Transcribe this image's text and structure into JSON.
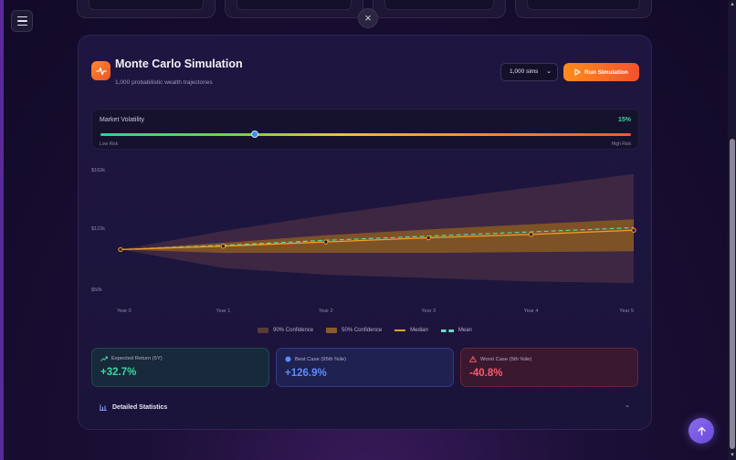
{
  "header": {
    "close_symbol": "×"
  },
  "simulation": {
    "title": "Monte Carlo Simulation",
    "subtitle": "1,000 probabilistic wealth trajectories",
    "sims_select": {
      "selected": "1,000 sims"
    },
    "run_label": "Run Simulation"
  },
  "volatility": {
    "label": "Market Volatility",
    "value_text": "15%",
    "low_label": "Low Risk",
    "high_label": "High Risk",
    "level_fraction": 0.29
  },
  "chart_data": {
    "type": "area",
    "x": [
      "Year 0",
      "Year 1",
      "Year 2",
      "Year 3",
      "Year 4",
      "Year 5"
    ],
    "y_ticks": [
      "$163k",
      "$122k",
      "$50k"
    ],
    "series": [
      {
        "name": "90% Confidence",
        "upper": [
          100,
          122,
          141,
          158,
          174,
          190
        ],
        "lower": [
          100,
          78,
          70,
          66,
          62,
          60
        ]
      },
      {
        "name": "50% Confidence",
        "upper": [
          100,
          108,
          117,
          124,
          130,
          136
        ],
        "lower": [
          100,
          96,
          96,
          96,
          97,
          98
        ]
      },
      {
        "name": "Median",
        "values": [
          100,
          104,
          109,
          114,
          118,
          123
        ]
      },
      {
        "name": "Mean",
        "values": [
          100,
          105,
          111,
          116,
          121,
          126
        ]
      }
    ],
    "colors": {
      "band90": "#4a2d45",
      "band50": "#8a5a22",
      "median": "#f0a020",
      "mean": "#4fd8b4"
    }
  },
  "legend": [
    {
      "label": "90% Confidence"
    },
    {
      "label": "50% Confidence"
    },
    {
      "label": "Median"
    },
    {
      "label": "Mean"
    }
  ],
  "stats": {
    "expected": {
      "label": "Expected Return (5Y)",
      "value": "+32.7%",
      "color": "#3fd6a2"
    },
    "best": {
      "label": "Best Case (95th %ile)",
      "value": "+126.9%",
      "color": "#5b8cff"
    },
    "worst": {
      "label": "Worst Case (5th %ile)",
      "value": "-40.8%",
      "color": "#ff5a6a"
    }
  },
  "details": {
    "label": "Detailed Statistics"
  }
}
